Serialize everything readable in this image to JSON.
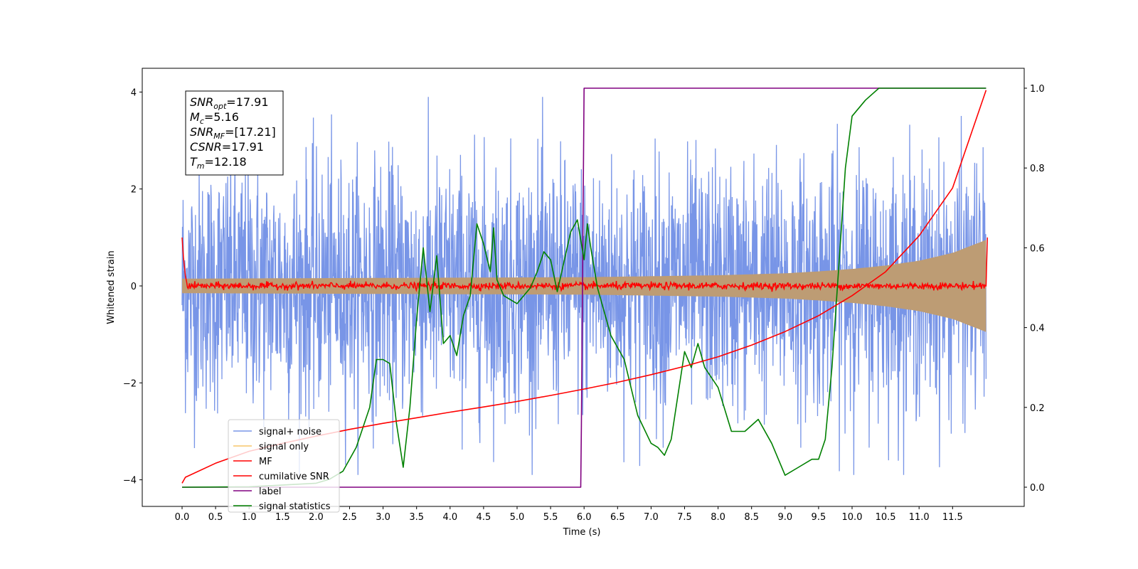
{
  "chart_data": {
    "type": "line",
    "xlabel": "Time (s)",
    "ylabel_left": "Whitened strain",
    "ylabel_right": "",
    "xlim": [
      -0.6,
      12.6
    ],
    "ylim_left": [
      -4.55,
      4.5
    ],
    "ylim_right": [
      -0.05,
      1.05
    ],
    "x_ticks": [
      "0.0",
      "0.5",
      "1.0",
      "1.5",
      "2.0",
      "2.5",
      "3.0",
      "3.5",
      "4.0",
      "4.5",
      "5.0",
      "5.5",
      "6.0",
      "6.5",
      "7.0",
      "7.5",
      "8.0",
      "8.5",
      "9.0",
      "9.5",
      "10.0",
      "10.5",
      "11.0",
      "11.5"
    ],
    "y_ticks_left": [
      "−4",
      "−2",
      "0",
      "2",
      "4"
    ],
    "y_ticks_right": [
      "0.0",
      "0.2",
      "0.4",
      "0.6",
      "0.8",
      "1.0"
    ],
    "stats_box": [
      {
        "sym": "SNR",
        "sub": "opt",
        "value": "=17.91"
      },
      {
        "sym": "M",
        "sub": "c",
        "value": "=5.16"
      },
      {
        "sym": "SNR",
        "sub": "MF",
        "value": "=[17.21]"
      },
      {
        "sym": "CSNR",
        "sub": "",
        "value": "=17.91"
      },
      {
        "sym": "T",
        "sub": "m",
        "value": "=12.18"
      }
    ],
    "legend_position": "lower-left",
    "series": [
      {
        "name": "signal+ noise",
        "axis": "left",
        "color": "#7895e7",
        "noise_envelope": {
          "x": [
            0,
            12.0
          ],
          "typical_amplitude": 1.5,
          "peak_amplitude": 3.9
        }
      },
      {
        "name": "signal only",
        "axis": "left",
        "color": "#f5b942",
        "envelope": {
          "x": [
            0,
            2,
            4,
            6,
            7,
            8,
            9,
            9.5,
            10,
            10.5,
            11,
            11.5,
            12.0
          ],
          "amplitude": [
            0.15,
            0.16,
            0.17,
            0.18,
            0.2,
            0.22,
            0.26,
            0.3,
            0.35,
            0.42,
            0.52,
            0.68,
            0.95
          ]
        }
      },
      {
        "name": "MF",
        "axis": "left",
        "color": "#ff0000",
        "x": [
          0,
          0.02,
          0.05,
          0.08,
          12.0,
          12.02
        ],
        "y": [
          1.0,
          0.6,
          0.2,
          0.0,
          0.0,
          1.0
        ],
        "noise_level": 0.08
      },
      {
        "name": "cumilative SNR",
        "axis": "right",
        "color": "#ff0000",
        "x": [
          0,
          0.05,
          0.5,
          1,
          1.5,
          2,
          2.5,
          3,
          3.5,
          4,
          4.5,
          5,
          5.5,
          6,
          6.5,
          7,
          7.5,
          8,
          8.5,
          9,
          9.5,
          10,
          10.5,
          11,
          11.5,
          12.0
        ],
        "y": [
          0.01,
          0.025,
          0.06,
          0.09,
          0.11,
          0.128,
          0.145,
          0.16,
          0.174,
          0.188,
          0.201,
          0.215,
          0.23,
          0.246,
          0.263,
          0.282,
          0.303,
          0.327,
          0.356,
          0.39,
          0.43,
          0.48,
          0.54,
          0.63,
          0.75,
          0.995
        ]
      },
      {
        "name": "label",
        "axis": "right",
        "color": "#800080",
        "x": [
          0,
          5.95,
          5.96,
          6.0,
          12.0
        ],
        "y": [
          0.0,
          0.0,
          0.15,
          1.0,
          1.0
        ]
      },
      {
        "name": "signal statistics",
        "axis": "right",
        "color": "#008000",
        "x": [
          0,
          1,
          2,
          2.2,
          2.4,
          2.6,
          2.8,
          2.9,
          3.0,
          3.1,
          3.2,
          3.3,
          3.4,
          3.5,
          3.6,
          3.7,
          3.8,
          3.9,
          4.0,
          4.1,
          4.2,
          4.3,
          4.4,
          4.5,
          4.6,
          4.65,
          4.7,
          4.8,
          5.0,
          5.2,
          5.3,
          5.4,
          5.5,
          5.6,
          5.8,
          5.9,
          6.0,
          6.05,
          6.1,
          6.2,
          6.4,
          6.6,
          6.8,
          7.0,
          7.1,
          7.2,
          7.3,
          7.5,
          7.6,
          7.7,
          7.8,
          8.0,
          8.2,
          8.4,
          8.6,
          8.8,
          9.0,
          9.2,
          9.4,
          9.5,
          9.6,
          9.7,
          9.8,
          9.9,
          10.0,
          10.2,
          10.4,
          10.6,
          11.0,
          11.5,
          12.0
        ],
        "y": [
          0.0,
          0.001,
          0.01,
          0.02,
          0.04,
          0.1,
          0.2,
          0.32,
          0.32,
          0.31,
          0.16,
          0.05,
          0.2,
          0.42,
          0.6,
          0.44,
          0.58,
          0.36,
          0.38,
          0.33,
          0.43,
          0.48,
          0.66,
          0.61,
          0.54,
          0.65,
          0.52,
          0.48,
          0.46,
          0.5,
          0.54,
          0.59,
          0.57,
          0.49,
          0.64,
          0.67,
          0.57,
          0.66,
          0.6,
          0.5,
          0.38,
          0.32,
          0.18,
          0.11,
          0.1,
          0.08,
          0.12,
          0.34,
          0.3,
          0.36,
          0.3,
          0.25,
          0.14,
          0.14,
          0.17,
          0.11,
          0.03,
          0.05,
          0.07,
          0.07,
          0.12,
          0.3,
          0.55,
          0.8,
          0.93,
          0.97,
          1.0,
          1.0,
          1.0,
          1.0,
          1.0
        ]
      }
    ]
  }
}
